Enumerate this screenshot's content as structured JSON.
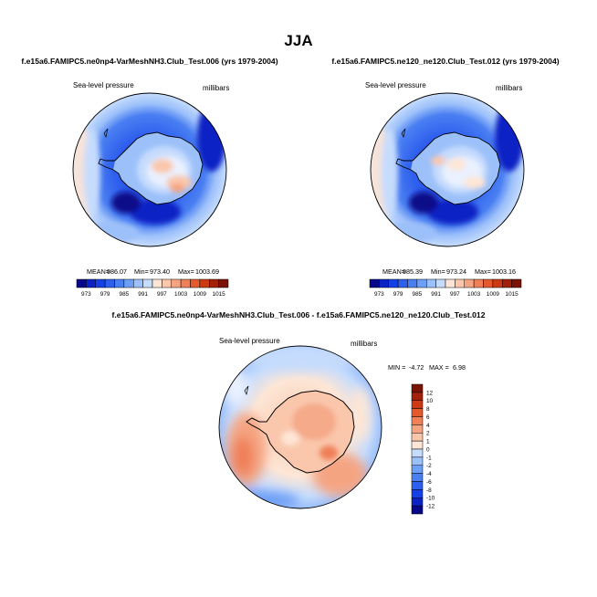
{
  "page": {
    "title": "JJA"
  },
  "colors": {
    "diverging": [
      "#08088a",
      "#0b23c4",
      "#1540e6",
      "#2e5fee",
      "#4a7ff2",
      "#6e9ff6",
      "#9cc0fa",
      "#c6dcfd",
      "#eaf1ff",
      "#fde6d6",
      "#fac7ac",
      "#f5a482",
      "#ef8058",
      "#e45a2e",
      "#cc3a14",
      "#a3200a",
      "#7a1205"
    ],
    "land_line": "#000000"
  },
  "chart_data": [
    {
      "type": "heatmap",
      "projection": "south-polar-stereographic",
      "title": "f.e15a6.FAMIPC5.ne0np4-VarMeshNH3.Club_Test.006 (yrs 1979-2004)",
      "left_label": "Sea-level pressure",
      "right_label": "millibars",
      "stats": {
        "mean_label": "MEAN=",
        "mean": "986.07",
        "min_label": "Min=",
        "min": "973.40",
        "max_label": "Max=",
        "max": "1003.69"
      },
      "colorbar": {
        "orientation": "horizontal",
        "levels": [
          973,
          976,
          979,
          982,
          985,
          988,
          991,
          994,
          997,
          1000,
          1003,
          1006,
          1009,
          1012,
          1015
        ],
        "tick_labels": [
          "973",
          "979",
          "985",
          "991",
          "997",
          "1003",
          "1009",
          "1015"
        ]
      }
    },
    {
      "type": "heatmap",
      "projection": "south-polar-stereographic",
      "title": "f.e15a6.FAMIPC5.ne120_ne120.Club_Test.012 (yrs 1979-2004)",
      "left_label": "Sea-level pressure",
      "right_label": "millibars",
      "stats": {
        "mean_label": "MEAN=",
        "mean": "985.39",
        "min_label": "Min=",
        "min": "973.24",
        "max_label": "Max=",
        "max": "1003.16"
      },
      "colorbar": {
        "orientation": "horizontal",
        "levels": [
          973,
          976,
          979,
          982,
          985,
          988,
          991,
          994,
          997,
          1000,
          1003,
          1006,
          1009,
          1012,
          1015
        ],
        "tick_labels": [
          "973",
          "979",
          "985",
          "991",
          "997",
          "1003",
          "1009",
          "1015"
        ]
      }
    },
    {
      "type": "heatmap",
      "projection": "south-polar-stereographic",
      "title": "f.e15a6.FAMIPC5.ne0np4-VarMeshNH3.Club_Test.006 - f.e15a6.FAMIPC5.ne120_ne120.Club_Test.012",
      "left_label": "Sea-level pressure",
      "right_label": "millibars",
      "stats": {
        "min_label": "MIN =",
        "min": "-4.72",
        "max_label": "MAX =",
        "max": "6.98"
      },
      "colorbar": {
        "orientation": "vertical",
        "levels": [
          12,
          10,
          8,
          6,
          4,
          2,
          1,
          0,
          -1,
          -2,
          -4,
          -6,
          -8,
          -10,
          -12
        ],
        "tick_labels": [
          "12",
          "10",
          "8",
          "6",
          "4",
          "2",
          "1",
          "0",
          "-1",
          "-2",
          "-4",
          "-6",
          "-8",
          "-10",
          "-12"
        ]
      }
    }
  ]
}
